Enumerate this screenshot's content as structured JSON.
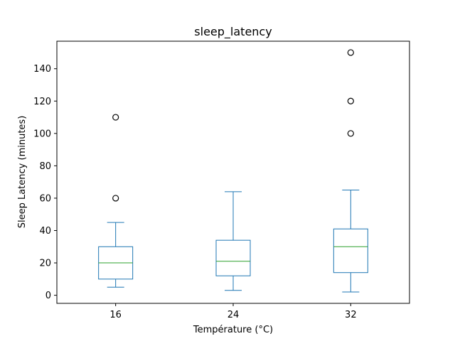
{
  "chart_data": {
    "type": "box",
    "title": "sleep_latency",
    "xlabel": "Température (°C)",
    "ylabel": "Sleep Latency (minutes)",
    "categories": [
      "16",
      "24",
      "32"
    ],
    "ylim": [
      -5,
      157
    ],
    "yticks": [
      "0",
      "20",
      "40",
      "60",
      "80",
      "100",
      "120",
      "140"
    ],
    "grid": false,
    "boxes": [
      {
        "category": "16",
        "whisker_low": 5,
        "q1": 10,
        "median": 20,
        "q3": 30,
        "whisker_high": 45,
        "outliers": [
          60,
          110
        ]
      },
      {
        "category": "24",
        "whisker_low": 3,
        "q1": 12,
        "median": 21,
        "q3": 34,
        "whisker_high": 64,
        "outliers": []
      },
      {
        "category": "32",
        "whisker_low": 2,
        "q1": 14,
        "median": 30,
        "q3": 41,
        "whisker_high": 65,
        "outliers": [
          100,
          120,
          150
        ]
      }
    ],
    "colors": {
      "box": "#1f77b4",
      "median": "#2ca02c",
      "outlier": "#000000",
      "axes": "#000000"
    }
  }
}
